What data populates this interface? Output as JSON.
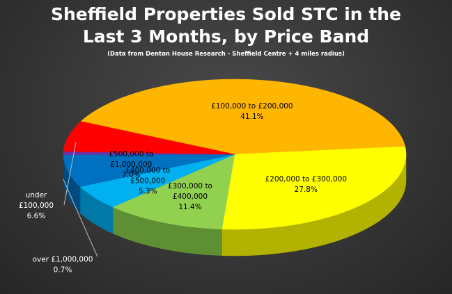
{
  "chart_data": {
    "type": "pie",
    "title_lines": [
      "Sheffield Properties Sold STC in the",
      "Last 3 Months, by Price Band"
    ],
    "subtitle": "(Data from Denton House Research - Sheffield Centre + 4 miles radius)",
    "slices": [
      {
        "label_lines": [
          "£100,000 to £200,000"
        ],
        "value": 41.1,
        "value_label": "41.1%",
        "color": "#FFB600",
        "side_color": "#B37D00",
        "text_color": "#000000"
      },
      {
        "label_lines": [
          "£200,000 to £300,000"
        ],
        "value": 27.8,
        "value_label": "27.8%",
        "color": "#FFFF00",
        "side_color": "#B2B200",
        "text_color": "#000000"
      },
      {
        "label_lines": [
          "£300,000 to",
          "£400,000"
        ],
        "value": 11.4,
        "value_label": "11.4%",
        "color": "#92D050",
        "side_color": "#5F8F33",
        "text_color": "#000000"
      },
      {
        "label_lines": [
          "£400,000 to",
          "£500,000"
        ],
        "value": 5.3,
        "value_label": "5.3%",
        "color": "#00B0F0",
        "side_color": "#0079A8",
        "text_color": "#000000"
      },
      {
        "label_lines": [
          "£500,000 to",
          "£1,000,000"
        ],
        "value": 7.0,
        "value_label": "7.0%",
        "color": "#0070C0",
        "side_color": "#004A80",
        "text_color": "#000000"
      },
      {
        "label_lines": [
          "over £1,000,000"
        ],
        "value": 0.7,
        "value_label": "0.7%",
        "color": "#7030A0",
        "side_color": "#4A1F6A",
        "text_color": "#FFFFFF"
      },
      {
        "label_lines": [
          "under",
          "£100,000"
        ],
        "value": 6.6,
        "value_label": "6.6%",
        "color": "#FF0000",
        "side_color": "#A80000",
        "text_color": "#FFFFFF"
      }
    ]
  }
}
